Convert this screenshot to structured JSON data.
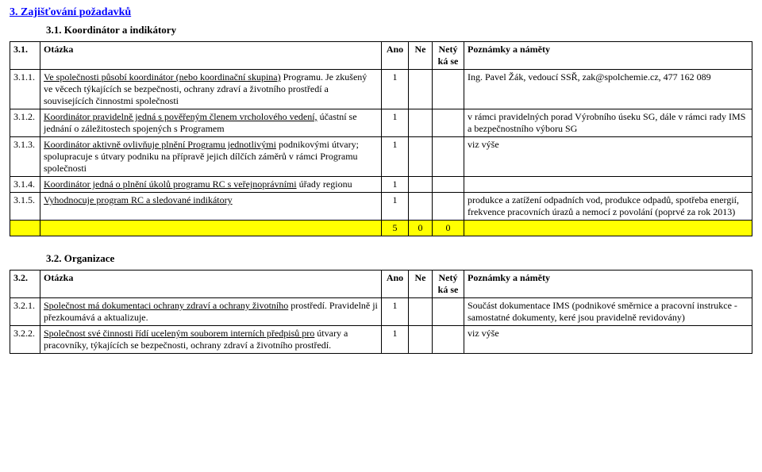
{
  "section3": {
    "title": "3. Zajišťování požadavků",
    "sub31": {
      "title": "3.1. Koordinátor a indikátory",
      "header": {
        "num": "3.1.",
        "q": "Otázka",
        "ano": "Ano",
        "ne": "Ne",
        "netyka": "Netý ká se",
        "notes": "Poznámky a náměty"
      },
      "rows": [
        {
          "num": "3.1.1.",
          "q_line1": "Ve společnosti působí koordinátor (nebo koordinační skupina)",
          "q_rest": "Programu. Je zkušený ve věcech týkajících se bezpečnosti, ochrany zdraví a životního prostředí a souvisejících činnostmi společnosti",
          "ano": "1",
          "ne": "",
          "netyka": "",
          "notes": "Ing. Pavel Žák, vedoucí SSŘ, zak@spolchemie.cz, 477 162 089"
        },
        {
          "num": "3.1.2.",
          "q_line1": "Koordinátor pravidelně jedná s pověřeným členem vrcholového vedení,",
          "q_rest": "účastní se jednání o záležitostech spojených s Programem",
          "ano": "1",
          "ne": "",
          "netyka": "",
          "notes": "v rámci pravidelných porad Výrobního úseku SG, dále v rámci rady IMS a bezpečnostního výboru SG"
        },
        {
          "num": "3.1.3.",
          "q_line1": "Koordinátor aktivně ovlivňuje plnění Programu jednotlivými",
          "q_rest": "podnikovými útvary; spolupracuje s útvary podniku na přípravě jejich dílčích záměrů v rámci Programu společnosti",
          "ano": "1",
          "ne": "",
          "netyka": "",
          "notes": "viz výše"
        },
        {
          "num": "3.1.4.",
          "q_line1": "Koordinátor jedná  o plnění úkolů programu RC s veřejnoprávními",
          "q_rest": "úřady regionu",
          "ano": "1",
          "ne": "",
          "netyka": "",
          "notes": ""
        },
        {
          "num": "3.1.5.",
          "q_line1": "Vyhodnocuje program RC a sledované indikátory",
          "q_rest": "",
          "ano": "1",
          "ne": "",
          "netyka": "",
          "notes": "produkce a zatížení odpadních vod,  produkce odpadů, spotřeba energií, frekvence pracovních úrazů a nemocí z povolání (poprvé za rok 2013)"
        }
      ],
      "totals": {
        "ano": "5",
        "ne": "0",
        "netyka": "0"
      }
    },
    "sub32": {
      "title": "3.2. Organizace",
      "header": {
        "num": "3.2.",
        "q": "Otázka",
        "ano": "Ano",
        "ne": "Ne",
        "netyka": "Netý ká se",
        "notes": "Poznámky a náměty"
      },
      "rows": [
        {
          "num": "3.2.1.",
          "q_line1": "Společnost má dokumentaci ochrany zdraví a ochrany životního",
          "q_rest": "prostředí. Pravidelně ji přezkoumává a aktualizuje.",
          "ano": "1",
          "ne": "",
          "netyka": "",
          "notes": "Součást dokumentace IMS (podnikové směrnice a pracovní instrukce - samostatné dokumenty, keré jsou pravidelně revidovány)"
        },
        {
          "num": "3.2.2.",
          "q_line1": "Společnost své činnosti řídí uceleným souborem interních předpisů pro",
          "q_rest": "útvary a pracovníky, týkajících se bezpečnosti, ochrany zdraví a životního prostředí.",
          "ano": "1",
          "ne": "",
          "netyka": "",
          "notes": "viz výše"
        }
      ]
    }
  },
  "colors": {
    "link_blue": "#0000ff",
    "highlight": "#ffff00",
    "border": "#000000",
    "bg": "#ffffff",
    "text": "#000000"
  }
}
